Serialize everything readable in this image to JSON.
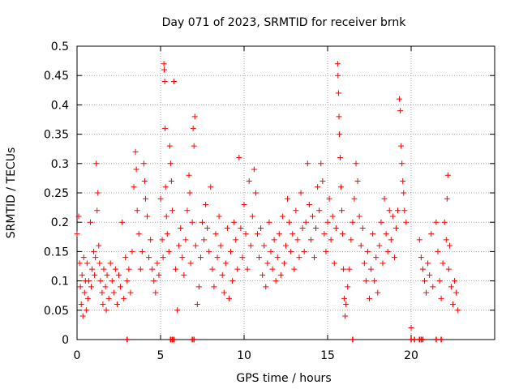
{
  "chart_data": {
    "type": "scatter",
    "title": "Day 071 of 2023, SRMTID for receiver brnk",
    "xlabel": "GPS time / hours",
    "ylabel": "SRMTID / TECUs",
    "xlim": [
      0,
      25
    ],
    "ylim": [
      0,
      0.5
    ],
    "xticks": [
      0,
      5,
      10,
      15,
      20
    ],
    "xtick_labels": [
      "0",
      "5",
      "10",
      "15",
      "20"
    ],
    "yticks": [
      0,
      0.05,
      0.1,
      0.15,
      0.2,
      0.25,
      0.3,
      0.35,
      0.4,
      0.45,
      0.5
    ],
    "ytick_labels": [
      "0",
      "0.05",
      "0.1",
      "0.15",
      "0.2",
      "0.25",
      "0.3",
      "0.35",
      "0.4",
      "0.45",
      "0.5"
    ],
    "grid": true,
    "marker": "+",
    "series_color": "#ff0000",
    "series": [
      {
        "name": "SRMTID",
        "points": [
          [
            0.0,
            0.18
          ],
          [
            0.1,
            0.21
          ],
          [
            0.15,
            0.13
          ],
          [
            0.2,
            0.09
          ],
          [
            0.25,
            0.06
          ],
          [
            0.3,
            0.11
          ],
          [
            0.35,
            0.04
          ],
          [
            0.4,
            0.14
          ],
          [
            0.45,
            0.08
          ],
          [
            0.5,
            0.1
          ],
          [
            0.55,
            0.05
          ],
          [
            0.6,
            0.13
          ],
          [
            0.65,
            0.07
          ],
          [
            0.7,
            0.1
          ],
          [
            0.8,
            0.2
          ],
          [
            0.85,
            0.09
          ],
          [
            0.9,
            0.12
          ],
          [
            1.0,
            0.15
          ],
          [
            1.05,
            0.11
          ],
          [
            1.1,
            0.14
          ],
          [
            1.15,
            0.3
          ],
          [
            1.2,
            0.22
          ],
          [
            1.25,
            0.25
          ],
          [
            1.3,
            0.16
          ],
          [
            1.35,
            0.13
          ],
          [
            1.4,
            0.1
          ],
          [
            1.5,
            0.08
          ],
          [
            1.55,
            0.06
          ],
          [
            1.6,
            0.12
          ],
          [
            1.7,
            0.09
          ],
          [
            1.75,
            0.05
          ],
          [
            1.8,
            0.11
          ],
          [
            1.9,
            0.07
          ],
          [
            2.0,
            0.13
          ],
          [
            2.1,
            0.1
          ],
          [
            2.2,
            0.08
          ],
          [
            2.3,
            0.12
          ],
          [
            2.4,
            0.06
          ],
          [
            2.5,
            0.11
          ],
          [
            2.6,
            0.09
          ],
          [
            2.7,
            0.2
          ],
          [
            2.8,
            0.07
          ],
          [
            2.9,
            0.14
          ],
          [
            3.0,
            0.1
          ],
          [
            3.1,
            0.12
          ],
          [
            3.2,
            0.08
          ],
          [
            3.3,
            0.15
          ],
          [
            3.4,
            0.26
          ],
          [
            3.5,
            0.32
          ],
          [
            3.55,
            0.29
          ],
          [
            3.6,
            0.22
          ],
          [
            3.7,
            0.18
          ],
          [
            3.8,
            0.12
          ],
          [
            3.9,
            0.15
          ],
          [
            4.0,
            0.3
          ],
          [
            4.05,
            0.27
          ],
          [
            4.1,
            0.24
          ],
          [
            4.2,
            0.21
          ],
          [
            4.3,
            0.14
          ],
          [
            4.4,
            0.17
          ],
          [
            4.5,
            0.12
          ],
          [
            4.6,
            0.1
          ],
          [
            4.7,
            0.08
          ],
          [
            4.8,
            0.13
          ],
          [
            4.9,
            0.11
          ],
          [
            5.0,
            0.24
          ],
          [
            5.1,
            0.17
          ],
          [
            5.15,
            0.14
          ],
          [
            5.2,
            0.47
          ],
          [
            5.22,
            0.46
          ],
          [
            5.25,
            0.44
          ],
          [
            5.27,
            0.36
          ],
          [
            5.3,
            0.26
          ],
          [
            5.35,
            0.21
          ],
          [
            5.4,
            0.18
          ],
          [
            5.5,
            0.15
          ],
          [
            5.55,
            0.33
          ],
          [
            5.6,
            0.3
          ],
          [
            5.65,
            0.27
          ],
          [
            5.7,
            0.22
          ],
          [
            5.8,
            0.44
          ],
          [
            5.9,
            0.12
          ],
          [
            6.0,
            0.05
          ],
          [
            6.1,
            0.16
          ],
          [
            6.2,
            0.19
          ],
          [
            6.3,
            0.14
          ],
          [
            6.4,
            0.11
          ],
          [
            6.5,
            0.17
          ],
          [
            6.6,
            0.22
          ],
          [
            6.7,
            0.28
          ],
          [
            6.75,
            0.25
          ],
          [
            6.8,
            0.13
          ],
          [
            6.9,
            0.2
          ],
          [
            6.95,
            0.36
          ],
          [
            7.0,
            0.33
          ],
          [
            7.05,
            0.38
          ],
          [
            7.1,
            0.16
          ],
          [
            7.2,
            0.06
          ],
          [
            7.3,
            0.09
          ],
          [
            7.4,
            0.14
          ],
          [
            7.5,
            0.2
          ],
          [
            7.6,
            0.17
          ],
          [
            7.7,
            0.23
          ],
          [
            7.8,
            0.19
          ],
          [
            7.9,
            0.15
          ],
          [
            8.0,
            0.26
          ],
          [
            8.1,
            0.12
          ],
          [
            8.2,
            0.09
          ],
          [
            8.3,
            0.18
          ],
          [
            8.4,
            0.14
          ],
          [
            8.5,
            0.21
          ],
          [
            8.6,
            0.16
          ],
          [
            8.7,
            0.11
          ],
          [
            8.8,
            0.08
          ],
          [
            8.9,
            0.13
          ],
          [
            9.0,
            0.19
          ],
          [
            9.1,
            0.07
          ],
          [
            9.2,
            0.15
          ],
          [
            9.3,
            0.1
          ],
          [
            9.4,
            0.2
          ],
          [
            9.5,
            0.17
          ],
          [
            9.6,
            0.12
          ],
          [
            9.7,
            0.31
          ],
          [
            9.8,
            0.19
          ],
          [
            9.9,
            0.14
          ],
          [
            10.0,
            0.23
          ],
          [
            10.1,
            0.18
          ],
          [
            10.2,
            0.12
          ],
          [
            10.3,
            0.27
          ],
          [
            10.4,
            0.16
          ],
          [
            10.5,
            0.21
          ],
          [
            10.6,
            0.29
          ],
          [
            10.7,
            0.25
          ],
          [
            10.8,
            0.18
          ],
          [
            10.9,
            0.14
          ],
          [
            11.0,
            0.19
          ],
          [
            11.1,
            0.11
          ],
          [
            11.2,
            0.16
          ],
          [
            11.3,
            0.09
          ],
          [
            11.4,
            0.13
          ],
          [
            11.5,
            0.2
          ],
          [
            11.6,
            0.15
          ],
          [
            11.7,
            0.12
          ],
          [
            11.8,
            0.17
          ],
          [
            11.9,
            0.1
          ],
          [
            12.0,
            0.14
          ],
          [
            12.1,
            0.18
          ],
          [
            12.2,
            0.11
          ],
          [
            12.3,
            0.21
          ],
          [
            12.4,
            0.13
          ],
          [
            12.5,
            0.16
          ],
          [
            12.6,
            0.24
          ],
          [
            12.7,
            0.2
          ],
          [
            12.8,
            0.15
          ],
          [
            12.9,
            0.18
          ],
          [
            13.0,
            0.12
          ],
          [
            13.1,
            0.22
          ],
          [
            13.2,
            0.17
          ],
          [
            13.3,
            0.14
          ],
          [
            13.4,
            0.25
          ],
          [
            13.5,
            0.19
          ],
          [
            13.6,
            0.15
          ],
          [
            13.7,
            0.2
          ],
          [
            13.8,
            0.3
          ],
          [
            13.9,
            0.23
          ],
          [
            14.0,
            0.17
          ],
          [
            14.1,
            0.21
          ],
          [
            14.2,
            0.14
          ],
          [
            14.3,
            0.19
          ],
          [
            14.4,
            0.26
          ],
          [
            14.5,
            0.22
          ],
          [
            14.6,
            0.3
          ],
          [
            14.7,
            0.27
          ],
          [
            14.8,
            0.18
          ],
          [
            14.9,
            0.15
          ],
          [
            15.0,
            0.2
          ],
          [
            15.1,
            0.24
          ],
          [
            15.2,
            0.17
          ],
          [
            15.3,
            0.21
          ],
          [
            15.4,
            0.13
          ],
          [
            15.5,
            0.19
          ],
          [
            15.6,
            0.47
          ],
          [
            15.62,
            0.45
          ],
          [
            15.65,
            0.42
          ],
          [
            15.68,
            0.38
          ],
          [
            15.7,
            0.35
          ],
          [
            15.75,
            0.31
          ],
          [
            15.8,
            0.26
          ],
          [
            15.85,
            0.22
          ],
          [
            15.9,
            0.18
          ],
          [
            15.95,
            0.12
          ],
          [
            16.0,
            0.07
          ],
          [
            16.05,
            0.04
          ],
          [
            16.1,
            0.06
          ],
          [
            16.2,
            0.09
          ],
          [
            16.3,
            0.12
          ],
          [
            16.4,
            0.17
          ],
          [
            16.5,
            0.2
          ],
          [
            16.6,
            0.24
          ],
          [
            16.7,
            0.3
          ],
          [
            16.8,
            0.27
          ],
          [
            16.9,
            0.21
          ],
          [
            17.0,
            0.16
          ],
          [
            17.1,
            0.19
          ],
          [
            17.2,
            0.13
          ],
          [
            17.3,
            0.1
          ],
          [
            17.4,
            0.15
          ],
          [
            17.5,
            0.07
          ],
          [
            17.6,
            0.12
          ],
          [
            17.7,
            0.18
          ],
          [
            17.8,
            0.1
          ],
          [
            17.9,
            0.14
          ],
          [
            18.0,
            0.08
          ],
          [
            18.1,
            0.16
          ],
          [
            18.2,
            0.2
          ],
          [
            18.3,
            0.13
          ],
          [
            18.4,
            0.24
          ],
          [
            18.5,
            0.18
          ],
          [
            18.6,
            0.15
          ],
          [
            18.7,
            0.22
          ],
          [
            18.8,
            0.17
          ],
          [
            18.9,
            0.21
          ],
          [
            19.0,
            0.14
          ],
          [
            19.1,
            0.19
          ],
          [
            19.2,
            0.22
          ],
          [
            19.3,
            0.41
          ],
          [
            19.35,
            0.39
          ],
          [
            19.4,
            0.33
          ],
          [
            19.45,
            0.3
          ],
          [
            19.5,
            0.27
          ],
          [
            19.55,
            0.25
          ],
          [
            19.6,
            0.22
          ],
          [
            19.7,
            0.2
          ],
          [
            20.0,
            0.02
          ],
          [
            20.5,
            0.17
          ],
          [
            20.6,
            0.14
          ],
          [
            20.7,
            0.12
          ],
          [
            20.8,
            0.1
          ],
          [
            20.9,
            0.08
          ],
          [
            21.0,
            0.13
          ],
          [
            21.1,
            0.11
          ],
          [
            21.2,
            0.18
          ],
          [
            21.3,
            0.09
          ],
          [
            21.5,
            0.2
          ],
          [
            21.6,
            0.15
          ],
          [
            21.7,
            0.1
          ],
          [
            21.8,
            0.07
          ],
          [
            21.9,
            0.13
          ],
          [
            22.0,
            0.2
          ],
          [
            22.1,
            0.17
          ],
          [
            22.15,
            0.24
          ],
          [
            22.2,
            0.28
          ],
          [
            22.25,
            0.12
          ],
          [
            22.3,
            0.16
          ],
          [
            22.4,
            0.09
          ],
          [
            22.5,
            0.06
          ],
          [
            22.6,
            0.1
          ],
          [
            22.7,
            0.08
          ],
          [
            22.8,
            0.05
          ]
        ],
        "zero_markers": [
          3.0,
          5.6,
          5.7,
          5.8,
          6.9,
          7.0,
          16.5,
          20.0,
          20.2,
          20.5,
          20.6,
          20.7,
          21.5,
          21.8
        ]
      }
    ]
  }
}
